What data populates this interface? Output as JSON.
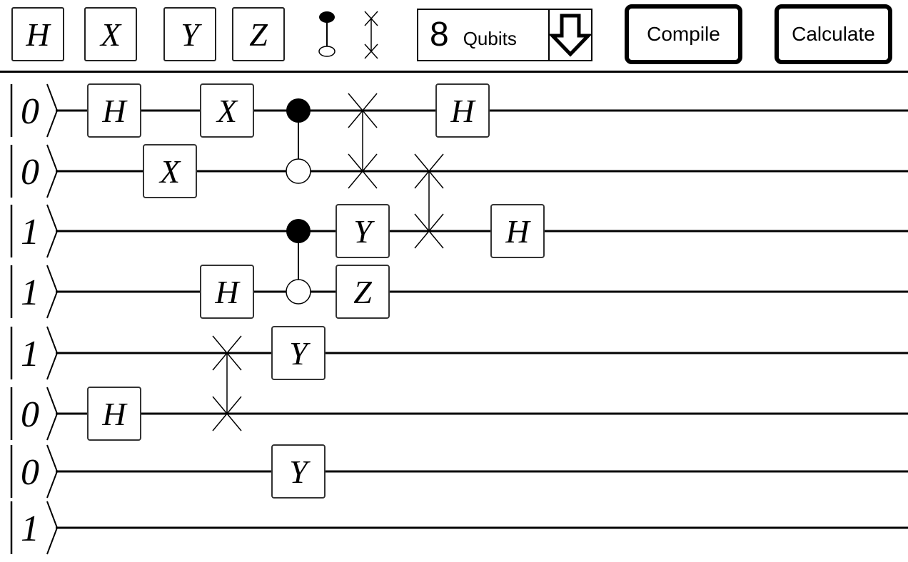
{
  "toolbar": {
    "gates": [
      {
        "name": "h",
        "label": "H"
      },
      {
        "name": "x",
        "label": "X"
      },
      {
        "name": "y",
        "label": "Y"
      },
      {
        "name": "z",
        "label": "Z"
      }
    ],
    "control_tool": "control-icon",
    "swap_tool": "swap-icon",
    "qubit_count": "8",
    "qubit_label": "Qubits",
    "dropdown_icon": "arrow-down-icon",
    "compile_label": "Compile",
    "calculate_label": "Calculate"
  },
  "circuit": {
    "initial_states": [
      "0",
      "0",
      "1",
      "1",
      "1",
      "0",
      "0",
      "1"
    ],
    "gates": [
      {
        "type": "H",
        "wire": 0,
        "col": 0
      },
      {
        "type": "X",
        "wire": 0,
        "col": 2
      },
      {
        "type": "H",
        "wire": 0,
        "col": 6
      },
      {
        "type": "X",
        "wire": 1,
        "col": 1
      },
      {
        "type": "Y",
        "wire": 2,
        "col": 4
      },
      {
        "type": "H",
        "wire": 2,
        "col": 7
      },
      {
        "type": "H",
        "wire": 3,
        "col": 2
      },
      {
        "type": "Z",
        "wire": 3,
        "col": 4
      },
      {
        "type": "Y",
        "wire": 4,
        "col": 3
      },
      {
        "type": "H",
        "wire": 5,
        "col": 0
      },
      {
        "type": "Y",
        "wire": 6,
        "col": 3
      }
    ],
    "controls": [
      {
        "control": 0,
        "target": 1,
        "col": 3
      },
      {
        "control": 2,
        "target": 3,
        "col": 3
      }
    ],
    "swaps": [
      {
        "wires": [
          0,
          1
        ],
        "col": 4
      },
      {
        "wires": [
          1,
          2
        ],
        "col": 5
      },
      {
        "wires": [
          4,
          5
        ],
        "col": 2
      }
    ]
  }
}
